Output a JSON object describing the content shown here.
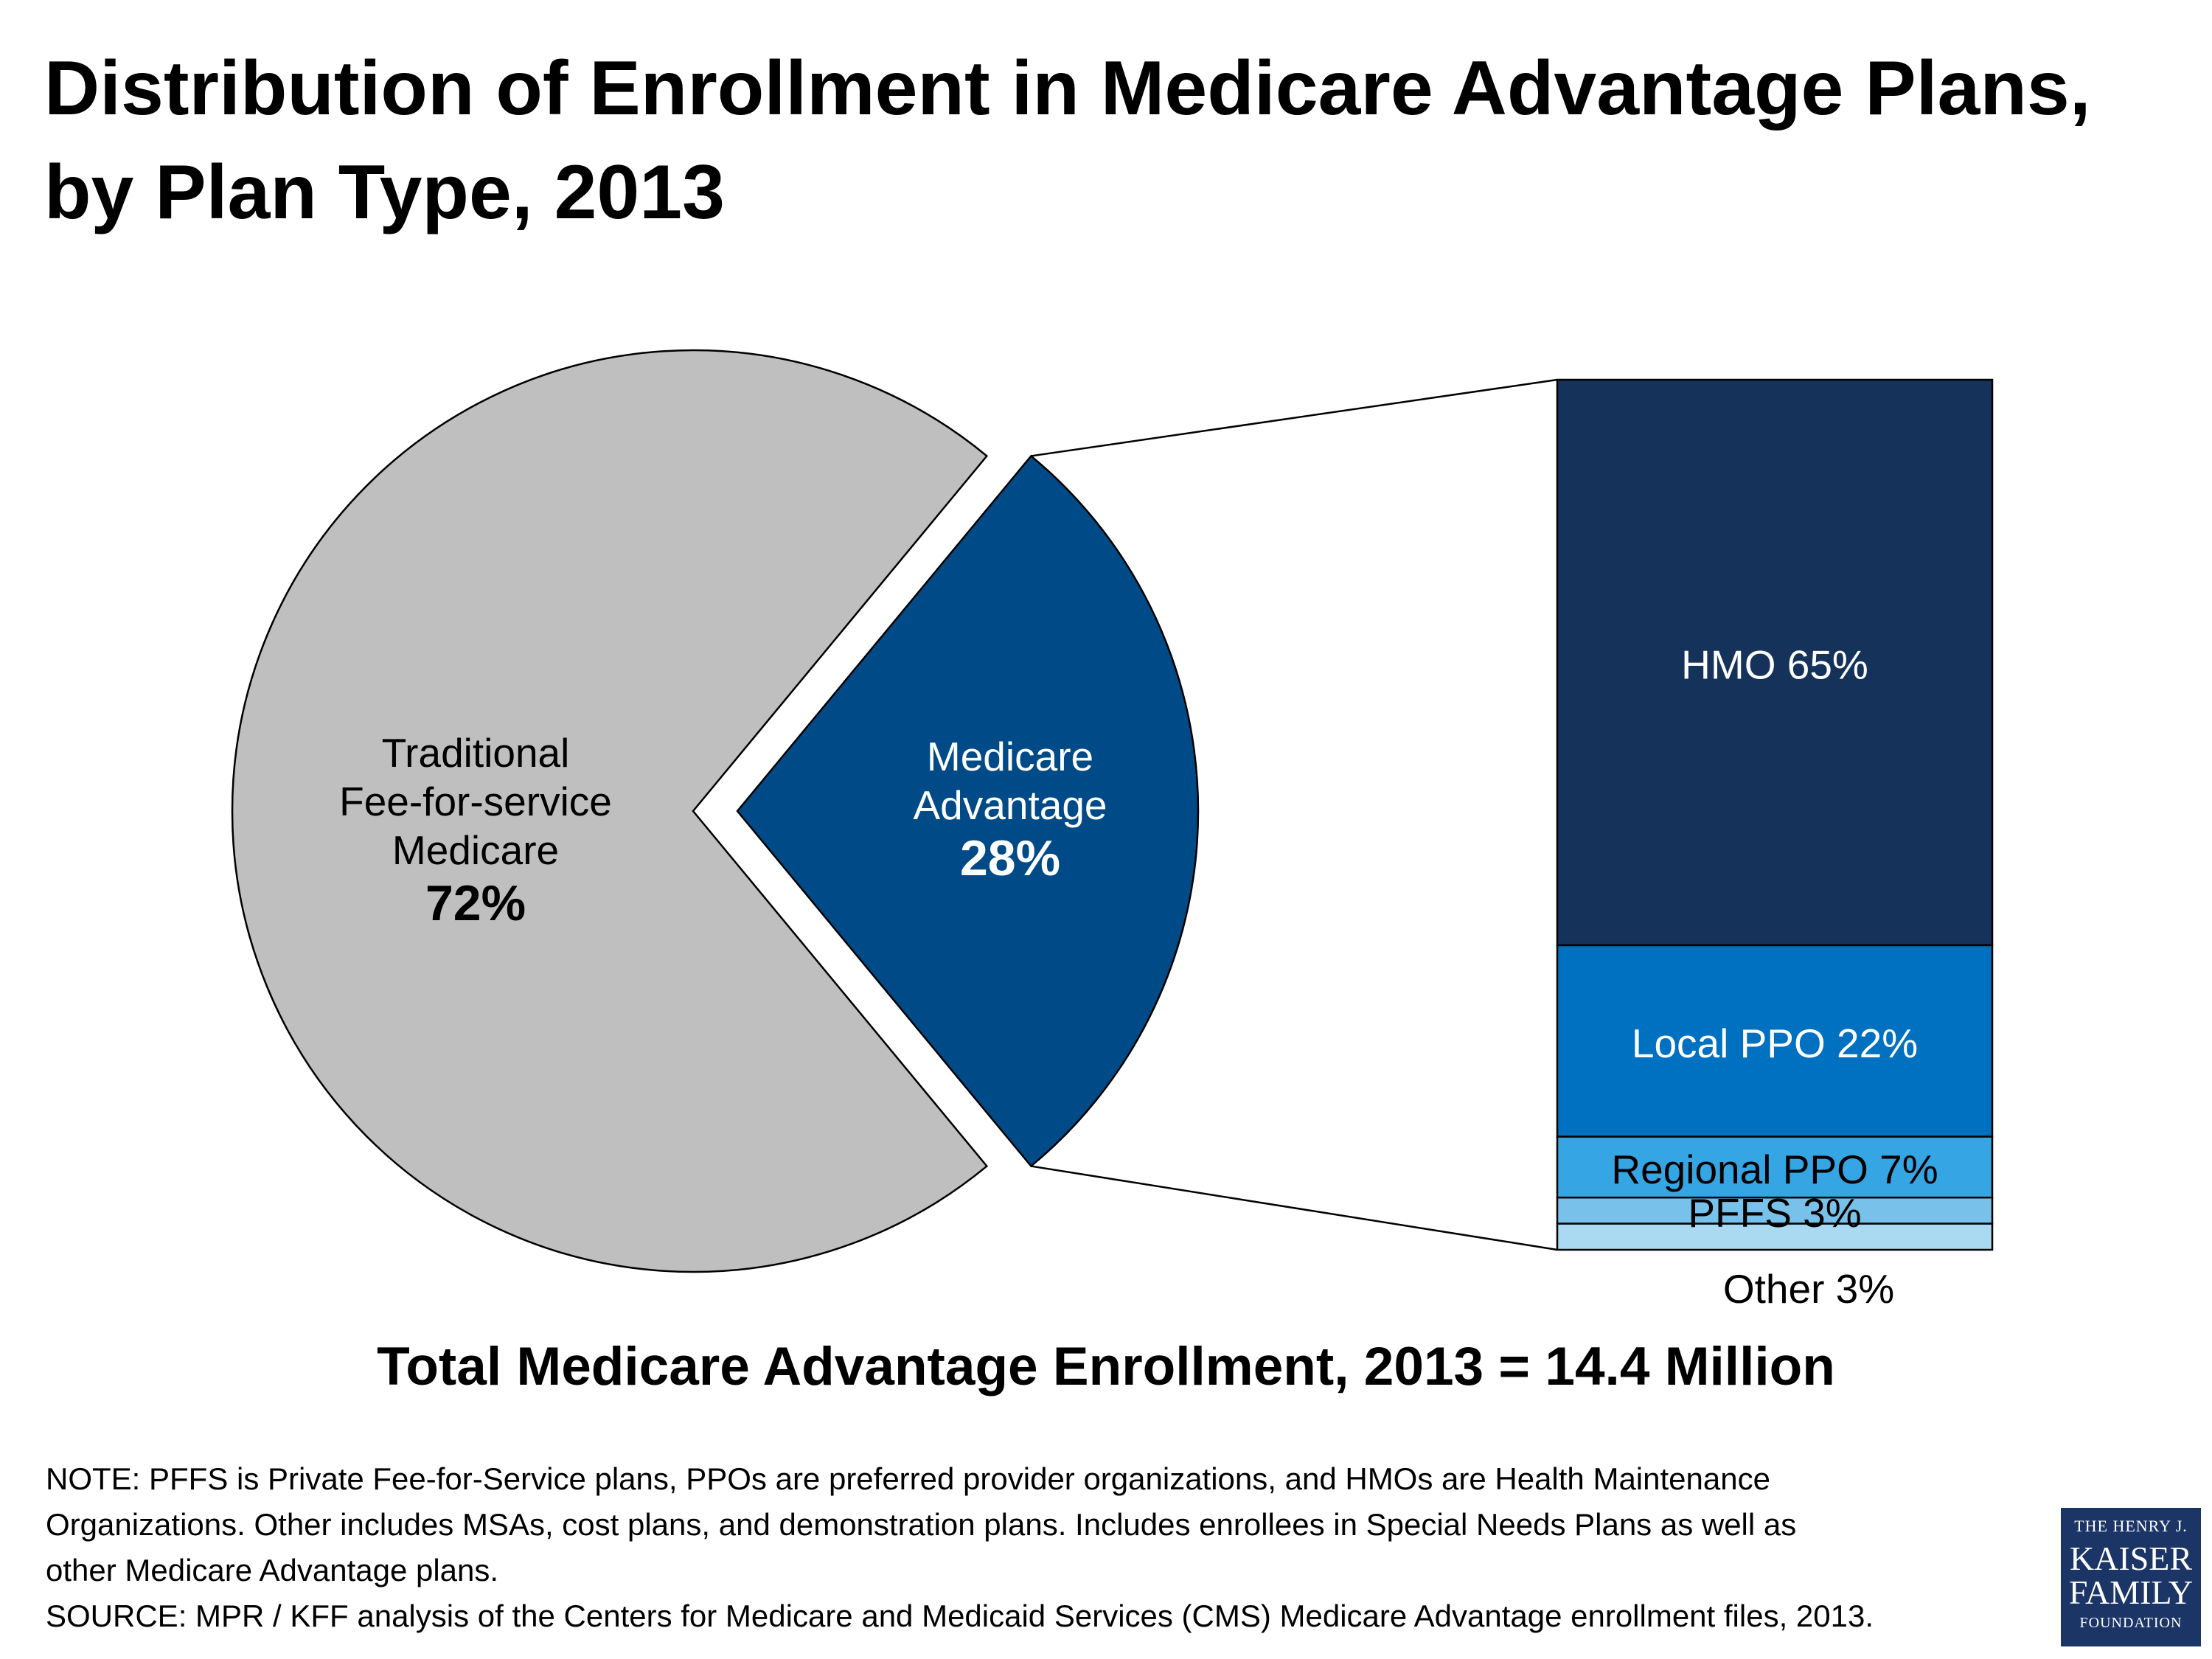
{
  "title": {
    "line1": "Distribution of Enrollment in Medicare Advantage Plans,",
    "line2": "by Plan Type, 2013"
  },
  "chart_data": [
    {
      "type": "pie",
      "slices": [
        {
          "label_lines": [
            "Traditional",
            "Fee-for-service",
            "Medicare"
          ],
          "value_label": "72%",
          "value": 72,
          "color": "#bfbfbf"
        },
        {
          "label_lines": [
            "Medicare",
            "Advantage"
          ],
          "value_label": "28%",
          "value": 28,
          "color": "#004b87",
          "exploded": true
        }
      ]
    },
    {
      "type": "bar",
      "stacked": true,
      "segments": [
        {
          "label": "HMO 65%",
          "value": 65,
          "color": "#15325a"
        },
        {
          "label": "Local PPO 22%",
          "value": 22,
          "color": "#0070c0"
        },
        {
          "label": "Regional PPO 7%",
          "value": 7,
          "color": "#35a5e4"
        },
        {
          "label": "PFFS 3%",
          "value": 3,
          "color": "#78c1ea"
        },
        {
          "label": "Other 3%",
          "value": 3,
          "color": "#a9daf2"
        }
      ]
    }
  ],
  "total_label": "Total Medicare Advantage Enrollment, 2013 = 14.4 Million",
  "notes": [
    "NOTE: PFFS is Private Fee-for-Service plans, PPOs are preferred provider organizations, and HMOs are Health Maintenance",
    "Organizations. Other includes MSAs, cost plans, and demonstration plans.  Includes enrollees in Special Needs Plans as well as",
    "other Medicare Advantage plans.",
    "SOURCE:  MPR / KFF analysis of the Centers for Medicare and Medicaid Services (CMS) Medicare Advantage enrollment files, 2013."
  ],
  "logo": {
    "line1": "THE HENRY J.",
    "line2": "KAISER",
    "line3": "FAMILY",
    "line4": "FOUNDATION"
  }
}
